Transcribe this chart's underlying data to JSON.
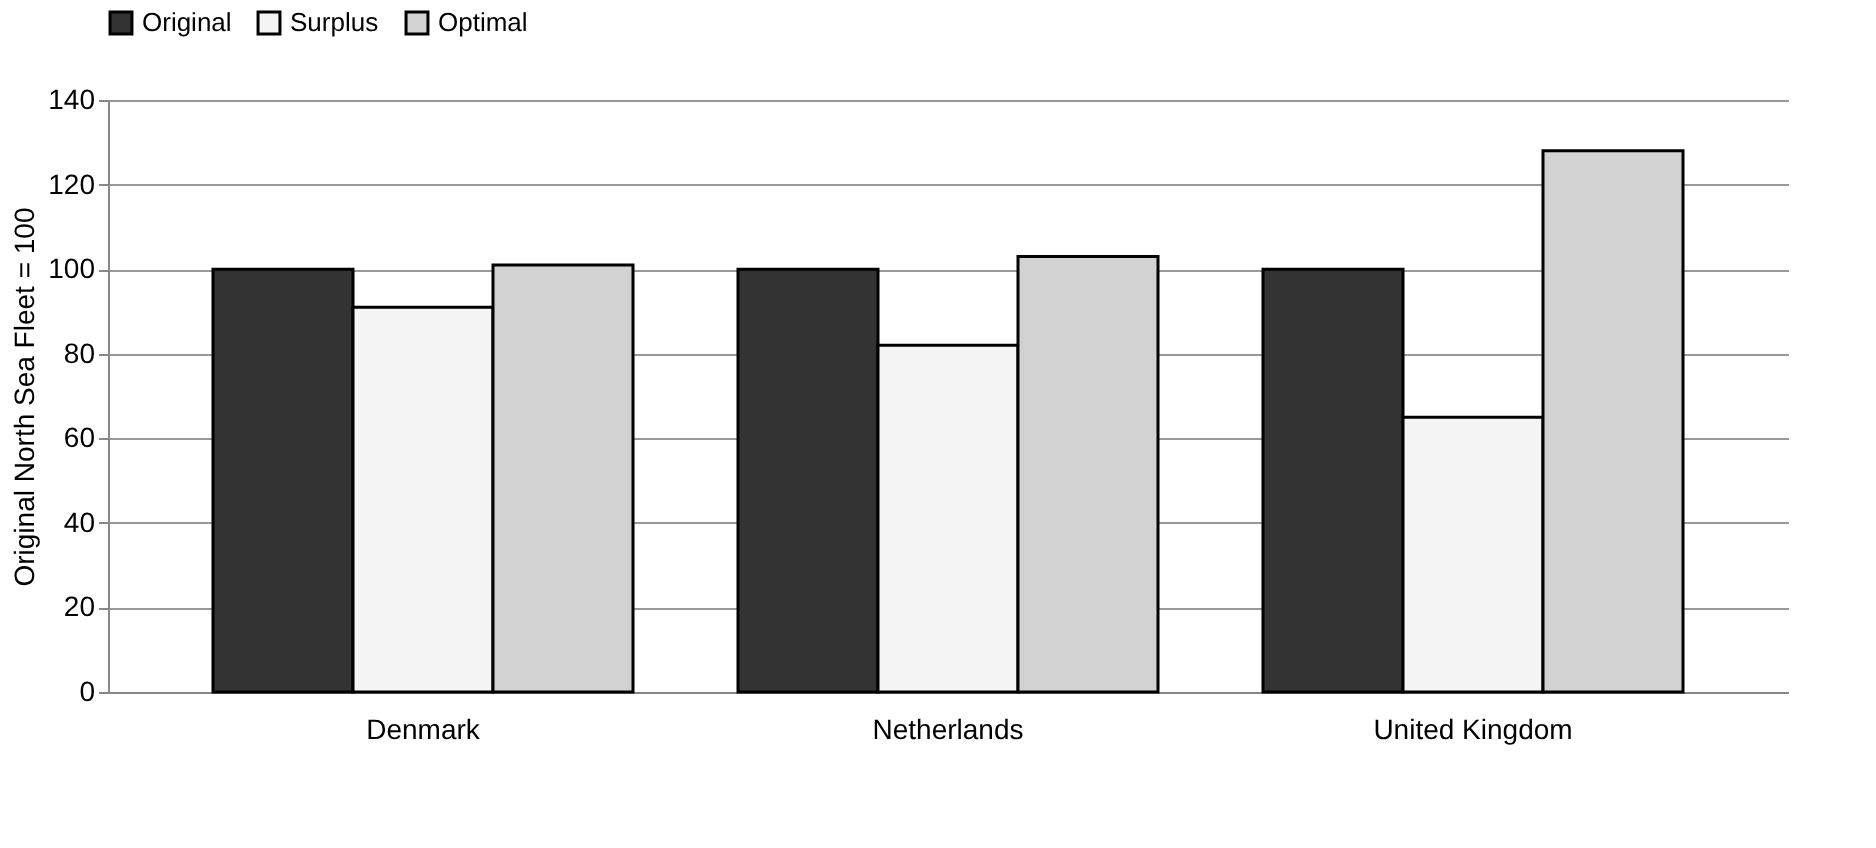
{
  "chart_data": {
    "type": "bar",
    "ylabel": "Original North Sea Fleet = 100",
    "categories": [
      "Denmark",
      "Netherlands",
      "United Kingdom"
    ],
    "series": [
      {
        "name": "Original",
        "color": "#333333",
        "values": [
          100,
          100,
          100
        ]
      },
      {
        "name": "Surplus",
        "color": "#f4f4f4",
        "values": [
          91,
          82,
          65
        ]
      },
      {
        "name": "Optimal",
        "color": "#d2d2d2",
        "values": [
          101,
          103,
          128
        ]
      }
    ],
    "ylim": [
      0,
      140
    ],
    "yticks": [
      0,
      20,
      40,
      60,
      80,
      100,
      120,
      140
    ],
    "grid": "y",
    "legend": "top"
  }
}
